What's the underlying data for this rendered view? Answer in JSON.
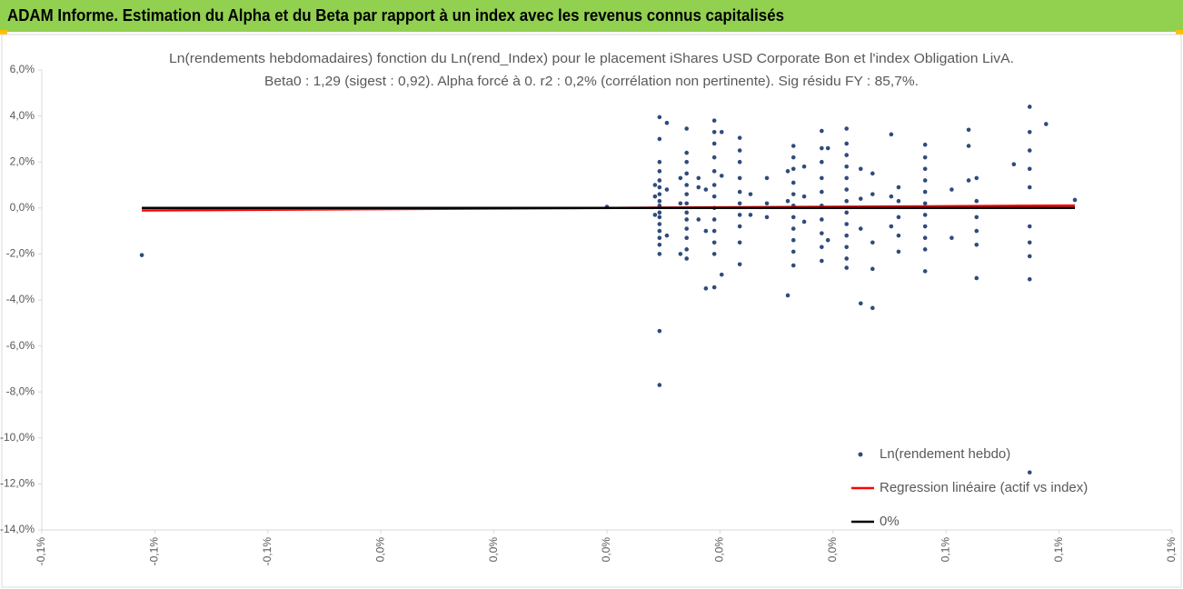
{
  "header": {
    "title": "ADAM Informe. Estimation du Alpha et du Beta par rapport à un index avec les revenus connus capitalisés"
  },
  "chart_data": {
    "type": "scatter",
    "title": "Ln(rendements hebdomadaires) fonction du Ln(rend_Index) pour le placement iShares USD Corporate Bon et l'index Obligation LivA.",
    "subtitle": "Beta0 : 1,29 (sigest : 0,92). Alpha forcé à 0. r2 : 0,2% (corrélation non pertinente). Sig résidu FY : 85,7%.",
    "xlim": [
      -0.1,
      0.1
    ],
    "xticks": [
      {
        "value": -0.1,
        "label": "-0,1%"
      },
      {
        "value": -0.08,
        "label": "-0,1%"
      },
      {
        "value": -0.06,
        "label": "-0,1%"
      },
      {
        "value": -0.04,
        "label": "0,0%"
      },
      {
        "value": -0.02,
        "label": "0,0%"
      },
      {
        "value": 0,
        "label": "0,0%"
      },
      {
        "value": 0.02,
        "label": "0,0%"
      },
      {
        "value": 0.04,
        "label": "0,0%"
      },
      {
        "value": 0.06,
        "label": "0,1%"
      },
      {
        "value": 0.08,
        "label": "0,1%"
      },
      {
        "value": 0.1,
        "label": "0,1%"
      }
    ],
    "ylim": [
      -14,
      6
    ],
    "yticks": [
      {
        "value": 6,
        "label": "6,0%"
      },
      {
        "value": 4,
        "label": "4,0%"
      },
      {
        "value": 2,
        "label": "2,0%"
      },
      {
        "value": 0,
        "label": "0,0%"
      },
      {
        "value": -2,
        "label": "-2,0%"
      },
      {
        "value": -4,
        "label": "-4,0%"
      },
      {
        "value": -6,
        "label": "-6,0%"
      },
      {
        "value": -8,
        "label": "-8,0%"
      },
      {
        "value": -10,
        "label": "-10,0%"
      },
      {
        "value": -12,
        "label": "-12,0%"
      },
      {
        "value": -14,
        "label": "-14,0%"
      }
    ],
    "legend": "bottom-right",
    "series": [
      {
        "name": "Ln(rendement hebdo)",
        "color": "#2f4b7c",
        "mode": "points",
        "x": [
          0.0093,
          0.0093,
          0.0093,
          0.0093,
          0.0093,
          0.0093,
          0.0093,
          0.0093,
          0.0093,
          0.0093,
          0.0093,
          0.0093,
          0.0093,
          0.0093,
          0.0093,
          0.0093,
          0.0093,
          0.0093,
          0.0085,
          0.0085,
          0.0085,
          0.0106,
          0.0106,
          0.0106,
          0.0141,
          0.0141,
          0.0141,
          0.0141,
          0.0141,
          0.0141,
          0.0141,
          0.0141,
          0.0141,
          0.0141,
          0.0141,
          0.0141,
          0.0141,
          0.013,
          0.013,
          0.013,
          0.0162,
          0.0162,
          0.0162,
          0.019,
          0.019,
          0.019,
          0.019,
          0.019,
          0.019,
          0.019,
          0.019,
          0.019,
          0.019,
          0.019,
          0.019,
          0.019,
          0.0175,
          0.0175,
          0.0175,
          0.0203,
          0.0203,
          0.0203,
          0.0235,
          0.0235,
          0.0235,
          0.0235,
          0.0235,
          0.0235,
          0.0235,
          0.0235,
          0.0235,
          0.0235,
          0.0254,
          0.0254,
          0.0283,
          0.0283,
          0.0283,
          0.032,
          0.032,
          0.032,
          0.033,
          0.033,
          0.033,
          0.033,
          0.033,
          0.033,
          0.033,
          0.033,
          0.033,
          0.033,
          0.033,
          0.0349,
          0.0349,
          0.0349,
          0.038,
          0.038,
          0.038,
          0.038,
          0.038,
          0.038,
          0.038,
          0.038,
          0.038,
          0.038,
          0.0391,
          0.0391,
          0.0424,
          0.0424,
          0.0424,
          0.0424,
          0.0424,
          0.0424,
          0.0424,
          0.0424,
          0.0424,
          0.0424,
          0.0424,
          0.0424,
          0.0424,
          0.0449,
          0.0449,
          0.0449,
          0.0449,
          0.047,
          0.047,
          0.047,
          0.047,
          0.047,
          0.0503,
          0.0503,
          0.0503,
          0.0516,
          0.0516,
          0.0516,
          0.0516,
          0.0516,
          0.0563,
          0.0563,
          0.0563,
          0.0563,
          0.0563,
          0.0563,
          0.0563,
          0.0563,
          0.0563,
          0.0563,
          0.0563,
          0.061,
          0.061,
          0.064,
          0.064,
          0.064,
          0.0654,
          0.0654,
          0.0654,
          0.0654,
          0.0654,
          0.0654,
          0.072,
          0.0748,
          0.0748,
          0.0748,
          0.0748,
          0.0748,
          0.0748,
          0.0748,
          0.0748,
          0.0748,
          0.0748,
          0.0777,
          0.0828,
          -0.0823,
          0
        ],
        "values": [
          3.95,
          3.0,
          2.0,
          1.6,
          1.2,
          0.9,
          0.6,
          0.3,
          0.1,
          -0.2,
          -0.4,
          -0.7,
          -1.0,
          -1.3,
          -1.6,
          -2.0,
          -5.35,
          -7.7,
          1.0,
          0.5,
          -0.3,
          3.7,
          0.8,
          -1.2,
          3.45,
          2.4,
          2.0,
          1.5,
          1.0,
          0.6,
          0.2,
          -0.2,
          -0.5,
          -0.9,
          -1.3,
          -1.8,
          -2.2,
          -2.0,
          0.2,
          1.3,
          1.3,
          0.9,
          -0.5,
          3.8,
          3.3,
          2.8,
          2.2,
          1.6,
          1.0,
          0.5,
          0.0,
          -0.5,
          -1.0,
          -1.5,
          -2.0,
          -3.45,
          -3.5,
          0.8,
          -1.0,
          3.3,
          -2.9,
          1.4,
          3.05,
          2.5,
          2.0,
          1.3,
          0.7,
          0.2,
          -0.3,
          -0.8,
          -1.5,
          -2.45,
          0.6,
          -0.3,
          1.3,
          0.2,
          -0.4,
          -3.8,
          1.6,
          0.3,
          2.7,
          2.2,
          1.7,
          1.1,
          0.6,
          0.1,
          -0.4,
          -0.9,
          -1.4,
          -1.9,
          -2.5,
          1.8,
          0.5,
          -0.6,
          3.35,
          2.6,
          2.0,
          1.3,
          0.7,
          0.1,
          -0.5,
          -1.1,
          -1.7,
          -2.3,
          2.6,
          -1.4,
          3.45,
          2.8,
          2.3,
          1.8,
          1.3,
          0.8,
          0.3,
          -0.2,
          -0.7,
          -1.2,
          -1.7,
          -2.2,
          -2.6,
          -4.15,
          1.7,
          0.4,
          -0.9,
          -4.35,
          -2.65,
          -1.5,
          1.5,
          0.6,
          3.2,
          -0.8,
          0.5,
          0.9,
          0.3,
          -0.4,
          -1.2,
          -1.9,
          2.75,
          2.2,
          1.7,
          1.2,
          0.7,
          0.2,
          -0.3,
          -0.8,
          -1.3,
          -1.8,
          -2.75,
          0.8,
          -1.3,
          3.4,
          2.7,
          1.2,
          1.3,
          0.3,
          -0.4,
          -1.0,
          -1.6,
          -3.05,
          1.9,
          4.4,
          3.3,
          2.5,
          1.7,
          0.9,
          -0.8,
          -1.5,
          -2.1,
          -3.1,
          -11.5,
          3.65,
          0.35,
          -2.05,
          0.05
        ]
      },
      {
        "name": "Regression linéaire (actif vs index)",
        "color": "#ff0000",
        "mode": "line",
        "x": [
          -0.0823,
          0.0828
        ],
        "values": [
          -0.106,
          0.107
        ]
      },
      {
        "name": "0%",
        "color": "#000000",
        "mode": "line",
        "x": [
          -0.0823,
          0.0828
        ],
        "values": [
          0,
          0
        ]
      }
    ]
  }
}
